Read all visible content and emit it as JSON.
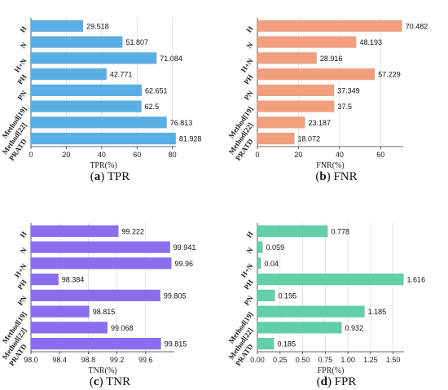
{
  "figure": {
    "panels": [
      {
        "caption_letter": "a",
        "caption_text": "TPR",
        "chart_data": {
          "type": "bar",
          "orientation": "horizontal",
          "categories": [
            "H",
            "N",
            "H+N",
            "PH",
            "PN",
            "Method[19]",
            "Method[22]",
            "PRATD"
          ],
          "values": [
            29.518,
            51.807,
            71.084,
            42.771,
            62.651,
            62.5,
            76.813,
            81.928
          ],
          "value_labels": [
            "29.518",
            "51.807",
            "71.084",
            "42.771",
            "62.651",
            "62.5",
            "76.813",
            "81.928"
          ],
          "xlabel": "TPR(%)",
          "xlim": [
            0,
            82
          ],
          "xticks": [
            0,
            20,
            40,
            60,
            80
          ],
          "color": "#5aaee6",
          "grid": true
        }
      },
      {
        "caption_letter": "b",
        "caption_text": "FNR",
        "chart_data": {
          "type": "bar",
          "orientation": "horizontal",
          "categories": [
            "H",
            "N",
            "H+N",
            "PH",
            "PN",
            "Method[19]",
            "Method[22]",
            "PRATD"
          ],
          "values": [
            70.482,
            48.193,
            28.916,
            57.229,
            37.349,
            37.5,
            23.187,
            18.072
          ],
          "value_labels": [
            "70.482",
            "48.193",
            "28.916",
            "57.229",
            "37.349",
            "37.5",
            "23.187",
            "18.072"
          ],
          "xlabel": "FNR(%)",
          "xlim": [
            0,
            71
          ],
          "xticks": [
            0,
            20,
            40,
            60
          ],
          "color": "#f0a07e",
          "grid": true
        }
      },
      {
        "caption_letter": "c",
        "caption_text": "TNR",
        "chart_data": {
          "type": "bar",
          "orientation": "horizontal",
          "categories": [
            "H",
            "N",
            "H+N",
            "PH",
            "PN",
            "Method[19]",
            "Method[22]",
            "PRATD"
          ],
          "values": [
            99.222,
            99.941,
            99.96,
            98.384,
            99.805,
            98.815,
            99.068,
            99.815
          ],
          "value_labels": [
            "99.222",
            "99.941",
            "99.96",
            "98.384",
            "99.805",
            "98.815",
            "99.068",
            "99.815"
          ],
          "xlabel": "TNR(%)",
          "xlim": [
            98.0,
            100.0
          ],
          "xticks": [
            98.0,
            98.4,
            98.8,
            99.2,
            99.6
          ],
          "xtick_labels": [
            "98.0",
            "98.4",
            "98.8",
            "99.2",
            "99.6"
          ],
          "color": "#8b6ef0",
          "grid": true
        }
      },
      {
        "caption_letter": "d",
        "caption_text": "FPR",
        "chart_data": {
          "type": "bar",
          "orientation": "horizontal",
          "categories": [
            "H",
            "N",
            "H+N",
            "PH",
            "PN",
            "Method[19]",
            "Method[22]",
            "PRATD"
          ],
          "values": [
            0.778,
            0.059,
            0.04,
            1.616,
            0.195,
            1.185,
            0.932,
            0.185
          ],
          "value_labels": [
            "0.778",
            "0.059",
            "0.04",
            "1.616",
            "0.195",
            "1.185",
            "0.932",
            "0.185"
          ],
          "xlabel": "FPR(%)",
          "xlim": [
            0,
            1.62
          ],
          "xticks": [
            0,
            0.25,
            0.5,
            0.75,
            1.0,
            1.25,
            1.5
          ],
          "xtick_labels": [
            "0.00",
            "0.25",
            "0.50",
            "0.75",
            "1.00",
            "1.25",
            "1.50"
          ],
          "color": "#62cfa6",
          "grid": true
        }
      }
    ]
  }
}
